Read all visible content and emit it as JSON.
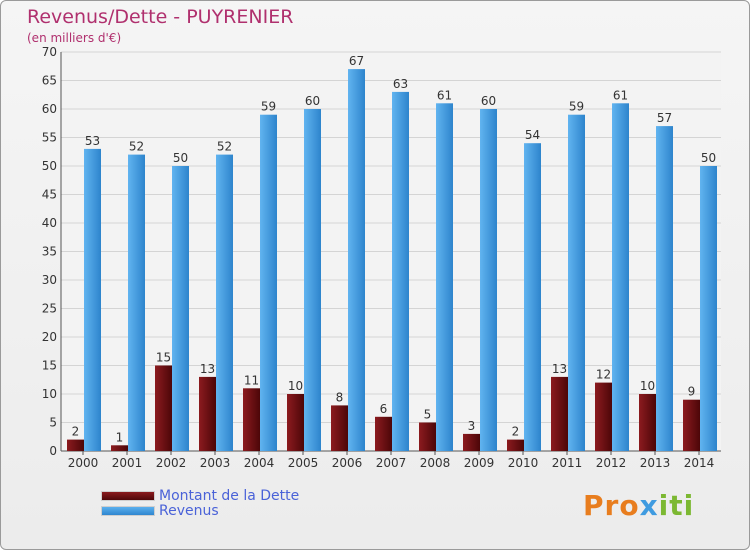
{
  "header": {
    "title": "Revenus/Dette - PUYRENIER",
    "subtitle": "(en milliers d'€)"
  },
  "chart_data": {
    "type": "bar",
    "categories": [
      "2000",
      "2001",
      "2002",
      "2003",
      "2004",
      "2005",
      "2006",
      "2007",
      "2008",
      "2009",
      "2010",
      "2011",
      "2012",
      "2013",
      "2014"
    ],
    "series": [
      {
        "name": "Montant de la Dette",
        "color": "#6b0f12",
        "values": [
          2,
          1,
          15,
          13,
          11,
          10,
          8,
          6,
          5,
          3,
          2,
          13,
          12,
          10,
          9
        ]
      },
      {
        "name": "Revenus",
        "color": "#3f9be0",
        "values": [
          53,
          52,
          50,
          52,
          59,
          60,
          67,
          63,
          61,
          60,
          54,
          59,
          61,
          57,
          50
        ]
      }
    ],
    "ylim": [
      0,
      70
    ],
    "yticks": [
      0,
      5,
      10,
      15,
      20,
      25,
      30,
      35,
      40,
      45,
      50,
      55,
      60,
      65,
      70
    ],
    "grid": true,
    "legend_position": "bottom-left"
  },
  "legend": {
    "items": [
      {
        "label": "Montant de la Dette",
        "color": "#6b0f12"
      },
      {
        "label": "Revenus",
        "color": "#3f9be0"
      }
    ]
  },
  "logo": {
    "text": "Proxiti",
    "letter_colors": [
      "#e87d1e",
      "#e87d1e",
      "#e87d1e",
      "#3f9be0",
      "#7cb832",
      "#7cb832",
      "#7cb832"
    ]
  }
}
